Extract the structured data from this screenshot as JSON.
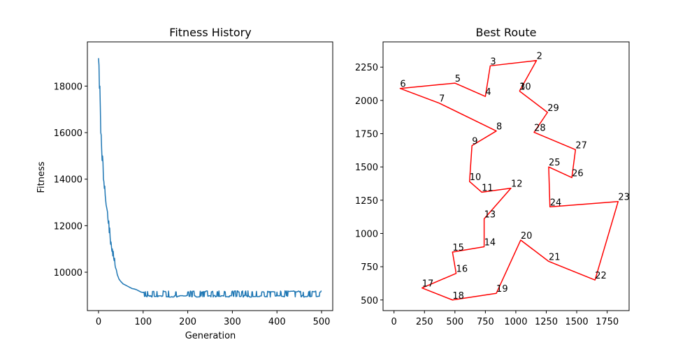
{
  "chart_data": [
    {
      "type": "line",
      "title": "Fitness History",
      "xlabel": "Generation",
      "ylabel": "Fitness",
      "xlim": [
        -25,
        525
      ],
      "ylim": [
        8350,
        19900
      ],
      "xticks": [
        0,
        100,
        200,
        300,
        400,
        500
      ],
      "yticks": [
        10000,
        12000,
        14000,
        16000,
        18000
      ],
      "grid": false,
      "color": "#1f77b4",
      "key_points": [
        [
          0,
          19200
        ],
        [
          1,
          18900
        ],
        [
          2,
          17900
        ],
        [
          3,
          18000
        ],
        [
          4,
          17100
        ],
        [
          5,
          16000
        ],
        [
          6,
          15900
        ],
        [
          7,
          15300
        ],
        [
          8,
          14800
        ],
        [
          9,
          15000
        ],
        [
          10,
          14700
        ],
        [
          11,
          14000
        ],
        [
          12,
          13900
        ],
        [
          13,
          13600
        ],
        [
          14,
          13700
        ],
        [
          15,
          13300
        ],
        [
          16,
          13100
        ],
        [
          17,
          12900
        ],
        [
          18,
          12800
        ],
        [
          19,
          12700
        ],
        [
          20,
          12600
        ],
        [
          21,
          12300
        ],
        [
          22,
          12100
        ],
        [
          23,
          12200
        ],
        [
          24,
          11700
        ],
        [
          25,
          11900
        ],
        [
          26,
          11500
        ],
        [
          27,
          11200
        ],
        [
          28,
          11300
        ],
        [
          29,
          11100
        ],
        [
          30,
          10900
        ],
        [
          31,
          11000
        ],
        [
          32,
          10700
        ],
        [
          33,
          10900
        ],
        [
          34,
          10600
        ],
        [
          35,
          10500
        ],
        [
          36,
          10600
        ],
        [
          37,
          10300
        ],
        [
          38,
          10200
        ],
        [
          40,
          10100
        ],
        [
          42,
          9900
        ],
        [
          44,
          9800
        ],
        [
          46,
          9700
        ],
        [
          48,
          9650
        ],
        [
          50,
          9600
        ],
        [
          55,
          9500
        ],
        [
          60,
          9450
        ],
        [
          65,
          9400
        ],
        [
          70,
          9350
        ],
        [
          75,
          9300
        ],
        [
          80,
          9280
        ],
        [
          85,
          9250
        ],
        [
          90,
          9200
        ],
        [
          95,
          9150
        ],
        [
          100,
          9130
        ]
      ],
      "plateau": {
        "from": 100,
        "to": 500,
        "low": 8930,
        "high": 9200
      }
    },
    {
      "type": "line",
      "title": "Best Route",
      "xlim": [
        -90,
        1930
      ],
      "ylim": [
        420,
        2440
      ],
      "xticks": [
        0,
        250,
        500,
        750,
        1000,
        1250,
        1500,
        1750
      ],
      "yticks": [
        500,
        750,
        1000,
        1250,
        1500,
        1750,
        2000,
        2250
      ],
      "grid": false,
      "color": "#ff0000",
      "cities": [
        {
          "label": "1",
          "x": 1030,
          "y": 2070
        },
        {
          "label": "2",
          "x": 1170,
          "y": 2300
        },
        {
          "label": "3",
          "x": 790,
          "y": 2260
        },
        {
          "label": "4",
          "x": 750,
          "y": 2030
        },
        {
          "label": "5",
          "x": 500,
          "y": 2130
        },
        {
          "label": "6",
          "x": 50,
          "y": 2090
        },
        {
          "label": "7",
          "x": 370,
          "y": 1980
        },
        {
          "label": "8",
          "x": 840,
          "y": 1770
        },
        {
          "label": "9",
          "x": 640,
          "y": 1660
        },
        {
          "label": "10",
          "x": 620,
          "y": 1390
        },
        {
          "label": "11",
          "x": 720,
          "y": 1310
        },
        {
          "label": "12",
          "x": 960,
          "y": 1340
        },
        {
          "label": "13",
          "x": 740,
          "y": 1110
        },
        {
          "label": "14",
          "x": 740,
          "y": 900
        },
        {
          "label": "15",
          "x": 480,
          "y": 860
        },
        {
          "label": "16",
          "x": 510,
          "y": 700
        },
        {
          "label": "17",
          "x": 230,
          "y": 590
        },
        {
          "label": "18",
          "x": 480,
          "y": 500
        },
        {
          "label": "19",
          "x": 840,
          "y": 550
        },
        {
          "label": "20",
          "x": 1040,
          "y": 950
        },
        {
          "label": "21",
          "x": 1270,
          "y": 790
        },
        {
          "label": "22",
          "x": 1650,
          "y": 650
        },
        {
          "label": "23",
          "x": 1840,
          "y": 1240
        },
        {
          "label": "24",
          "x": 1280,
          "y": 1200
        },
        {
          "label": "25",
          "x": 1270,
          "y": 1500
        },
        {
          "label": "26",
          "x": 1460,
          "y": 1420
        },
        {
          "label": "27",
          "x": 1490,
          "y": 1630
        },
        {
          "label": "28",
          "x": 1150,
          "y": 1760
        },
        {
          "label": "29",
          "x": 1260,
          "y": 1910
        },
        {
          "label": "30",
          "x": 1030,
          "y": 2070
        }
      ]
    }
  ]
}
